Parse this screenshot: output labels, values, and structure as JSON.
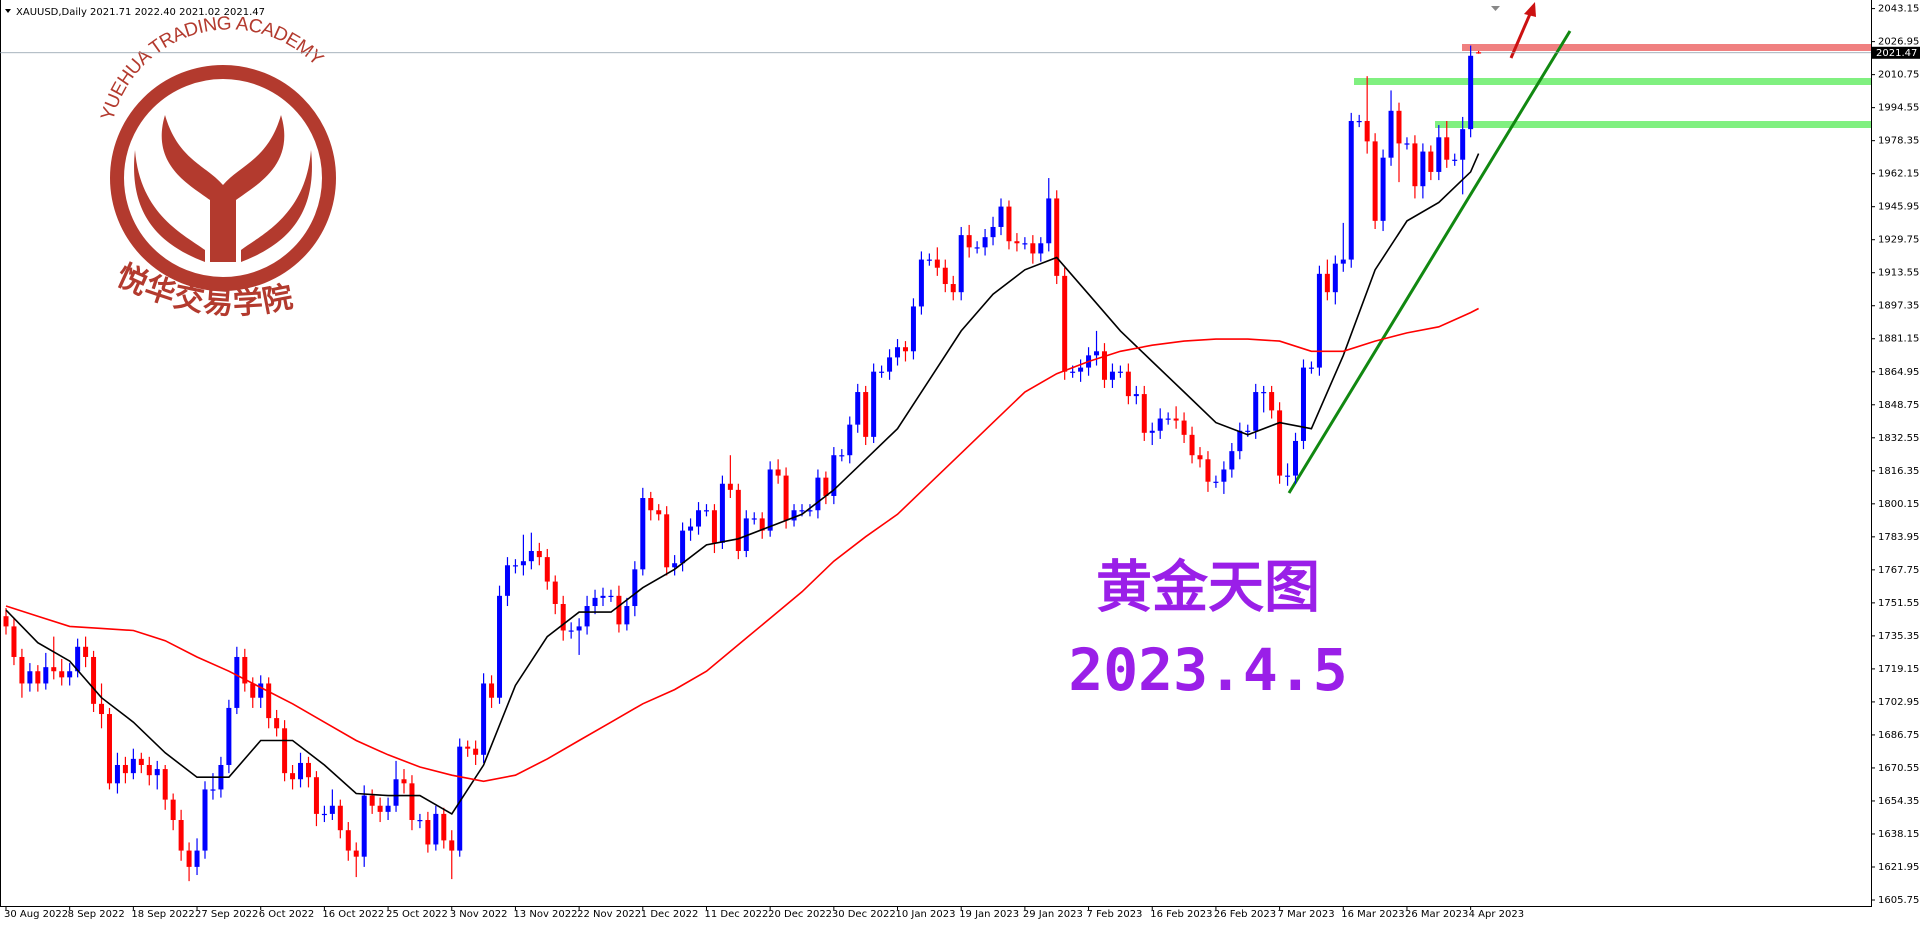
{
  "chart_data": {
    "type": "candlestick",
    "info": "XAUUSD,Daily  2021.71 2022.40 2021.02 2021.47",
    "price_label": "2021.47",
    "watermark": {
      "academy": "YUEHUA TRADING ACADEMY",
      "chinese": "悦华交易学院"
    },
    "annotations": [
      "黄金天图",
      "2023.4.5"
    ],
    "up_color": "#0000ff",
    "down_color": "#ff0000",
    "ylim": [
      1605.75,
      2043.15
    ],
    "yticks": [
      2043.15,
      2026.95,
      2010.75,
      1994.55,
      1978.35,
      1962.15,
      1945.95,
      1929.75,
      1913.55,
      1897.35,
      1881.15,
      1864.95,
      1848.75,
      1832.55,
      1816.35,
      1800.15,
      1783.95,
      1767.75,
      1751.55,
      1735.35,
      1719.15,
      1702.95,
      1686.75,
      1670.55,
      1654.35,
      1638.15,
      1621.95,
      1605.75
    ],
    "categories": [
      "30 Aug 2022",
      null,
      null,
      null,
      null,
      null,
      null,
      null,
      "8 Sep 2022",
      null,
      null,
      null,
      null,
      null,
      null,
      null,
      "18 Sep 2022",
      null,
      null,
      null,
      null,
      null,
      null,
      null,
      "27 Sep 2022",
      null,
      null,
      null,
      null,
      null,
      null,
      null,
      "6 Oct 2022",
      null,
      null,
      null,
      null,
      null,
      null,
      null,
      "16 Oct 2022",
      null,
      null,
      null,
      null,
      null,
      null,
      null,
      "25 Oct 2022",
      null,
      null,
      null,
      null,
      null,
      null,
      null,
      "3 Nov 2022",
      null,
      null,
      null,
      null,
      null,
      null,
      null,
      "13 Nov 2022",
      null,
      null,
      null,
      null,
      null,
      null,
      null,
      "22 Nov 2022",
      null,
      null,
      null,
      null,
      null,
      null,
      null,
      "1 Dec 2022",
      null,
      null,
      null,
      null,
      null,
      null,
      null,
      "11 Dec 2022",
      null,
      null,
      null,
      null,
      null,
      null,
      null,
      "20 Dec 2022",
      null,
      null,
      null,
      null,
      null,
      null,
      null,
      "30 Dec 2022",
      null,
      null,
      null,
      null,
      null,
      null,
      null,
      "10 Jan 2023",
      null,
      null,
      null,
      null,
      null,
      null,
      null,
      "19 Jan 2023",
      null,
      null,
      null,
      null,
      null,
      null,
      null,
      "29 Jan 2023",
      null,
      null,
      null,
      null,
      null,
      null,
      null,
      "7 Feb 2023",
      null,
      null,
      null,
      null,
      null,
      null,
      null,
      "16 Feb 2023",
      null,
      null,
      null,
      null,
      null,
      null,
      null,
      "26 Feb 2023",
      null,
      null,
      null,
      null,
      null,
      null,
      null,
      "7 Mar 2023",
      null,
      null,
      null,
      null,
      null,
      null,
      null,
      "16 Mar 2023",
      null,
      null,
      null,
      null,
      null,
      null,
      null,
      "26 Mar 2023",
      null,
      null,
      null,
      null,
      null,
      null,
      null,
      "4 Apr 2023",
      null
    ],
    "ohlc": [
      [
        1745,
        1749,
        1736,
        1740
      ],
      [
        1740,
        1744,
        1721,
        1725
      ],
      [
        1725,
        1729,
        1705,
        1712
      ],
      [
        1712,
        1722,
        1708,
        1718
      ],
      [
        1718,
        1721,
        1708,
        1712
      ],
      [
        1712,
        1727,
        1709,
        1720
      ],
      [
        1720,
        1735,
        1714,
        1718
      ],
      [
        1718,
        1724,
        1711,
        1715
      ],
      [
        1715,
        1722,
        1711,
        1718
      ],
      [
        1718,
        1734,
        1715,
        1730
      ],
      [
        1730,
        1735,
        1720,
        1725
      ],
      [
        1725,
        1728,
        1698,
        1702
      ],
      [
        1702,
        1712,
        1690,
        1697
      ],
      [
        1697,
        1700,
        1660,
        1663
      ],
      [
        1663,
        1678,
        1658,
        1672
      ],
      [
        1672,
        1676,
        1663,
        1668
      ],
      [
        1668,
        1680,
        1665,
        1675
      ],
      [
        1675,
        1678,
        1668,
        1672
      ],
      [
        1672,
        1676,
        1662,
        1667
      ],
      [
        1667,
        1674,
        1660,
        1670
      ],
      [
        1670,
        1672,
        1650,
        1655
      ],
      [
        1655,
        1658,
        1640,
        1645
      ],
      [
        1645,
        1650,
        1625,
        1630
      ],
      [
        1630,
        1634,
        1615,
        1622
      ],
      [
        1622,
        1636,
        1618,
        1630
      ],
      [
        1630,
        1664,
        1626,
        1660
      ],
      [
        1660,
        1668,
        1655,
        1660
      ],
      [
        1660,
        1676,
        1656,
        1672
      ],
      [
        1672,
        1704,
        1668,
        1700
      ],
      [
        1700,
        1730,
        1697,
        1725
      ],
      [
        1725,
        1729,
        1708,
        1712
      ],
      [
        1712,
        1715,
        1700,
        1705
      ],
      [
        1705,
        1716,
        1700,
        1712
      ],
      [
        1712,
        1715,
        1690,
        1695
      ],
      [
        1695,
        1699,
        1686,
        1690
      ],
      [
        1690,
        1694,
        1664,
        1668
      ],
      [
        1668,
        1672,
        1660,
        1665
      ],
      [
        1665,
        1678,
        1661,
        1673
      ],
      [
        1673,
        1676,
        1661,
        1666
      ],
      [
        1666,
        1669,
        1642,
        1648
      ],
      [
        1648,
        1652,
        1644,
        1648
      ],
      [
        1648,
        1660,
        1645,
        1652
      ],
      [
        1652,
        1655,
        1636,
        1640
      ],
      [
        1640,
        1644,
        1625,
        1630
      ],
      [
        1630,
        1634,
        1617,
        1627
      ],
      [
        1627,
        1662,
        1622,
        1657
      ],
      [
        1657,
        1660,
        1648,
        1652
      ],
      [
        1652,
        1656,
        1644,
        1649
      ],
      [
        1649,
        1656,
        1645,
        1652
      ],
      [
        1652,
        1674,
        1649,
        1665
      ],
      [
        1665,
        1670,
        1658,
        1663
      ],
      [
        1663,
        1667,
        1640,
        1645
      ],
      [
        1645,
        1648,
        1641,
        1645
      ],
      [
        1645,
        1649,
        1629,
        1633
      ],
      [
        1633,
        1652,
        1630,
        1648
      ],
      [
        1648,
        1651,
        1631,
        1635
      ],
      [
        1635,
        1640,
        1616,
        1630
      ],
      [
        1630,
        1685,
        1627,
        1681
      ],
      [
        1681,
        1684,
        1676,
        1680
      ],
      [
        1680,
        1684,
        1672,
        1677
      ],
      [
        1677,
        1717,
        1673,
        1712
      ],
      [
        1712,
        1716,
        1700,
        1705
      ],
      [
        1705,
        1760,
        1702,
        1755
      ],
      [
        1755,
        1774,
        1750,
        1770
      ],
      [
        1770,
        1773,
        1766,
        1770
      ],
      [
        1770,
        1785,
        1765,
        1772
      ],
      [
        1772,
        1786,
        1768,
        1777
      ],
      [
        1777,
        1781,
        1770,
        1774
      ],
      [
        1774,
        1778,
        1758,
        1762
      ],
      [
        1762,
        1765,
        1746,
        1751
      ],
      [
        1751,
        1755,
        1733,
        1738
      ],
      [
        1738,
        1742,
        1734,
        1738
      ],
      [
        1738,
        1744,
        1726,
        1740
      ],
      [
        1740,
        1755,
        1736,
        1750
      ],
      [
        1750,
        1758,
        1746,
        1754
      ],
      [
        1754,
        1759,
        1750,
        1755
      ],
      [
        1755,
        1758,
        1752,
        1755
      ],
      [
        1755,
        1760,
        1737,
        1741
      ],
      [
        1741,
        1754,
        1738,
        1750
      ],
      [
        1750,
        1772,
        1745,
        1768
      ],
      [
        1768,
        1808,
        1765,
        1803
      ],
      [
        1803,
        1806,
        1792,
        1797
      ],
      [
        1797,
        1800,
        1792,
        1795
      ],
      [
        1795,
        1799,
        1765,
        1769
      ],
      [
        1769,
        1775,
        1765,
        1771
      ],
      [
        1771,
        1791,
        1767,
        1787
      ],
      [
        1787,
        1793,
        1782,
        1789
      ],
      [
        1789,
        1801,
        1785,
        1797
      ],
      [
        1797,
        1800,
        1794,
        1797
      ],
      [
        1797,
        1800,
        1776,
        1781
      ],
      [
        1781,
        1814,
        1778,
        1810
      ],
      [
        1810,
        1824,
        1803,
        1807
      ],
      [
        1807,
        1810,
        1773,
        1777
      ],
      [
        1777,
        1797,
        1774,
        1793
      ],
      [
        1793,
        1796,
        1790,
        1793
      ],
      [
        1793,
        1796,
        1783,
        1787
      ],
      [
        1787,
        1821,
        1784,
        1817
      ],
      [
        1817,
        1822,
        1810,
        1814
      ],
      [
        1814,
        1818,
        1788,
        1792
      ],
      [
        1792,
        1800,
        1789,
        1797
      ],
      [
        1797,
        1800,
        1794,
        1797
      ],
      [
        1797,
        1800,
        1794,
        1797
      ],
      [
        1797,
        1817,
        1793,
        1813
      ],
      [
        1813,
        1816,
        1800,
        1804
      ],
      [
        1804,
        1828,
        1800,
        1824
      ],
      [
        1824,
        1827,
        1821,
        1824
      ],
      [
        1824,
        1843,
        1820,
        1839
      ],
      [
        1839,
        1859,
        1835,
        1855
      ],
      [
        1855,
        1858,
        1829,
        1833
      ],
      [
        1833,
        1869,
        1830,
        1865
      ],
      [
        1865,
        1868,
        1862,
        1865
      ],
      [
        1865,
        1876,
        1861,
        1872
      ],
      [
        1872,
        1881,
        1868,
        1877
      ],
      [
        1877,
        1880,
        1870,
        1875
      ],
      [
        1875,
        1901,
        1871,
        1897
      ],
      [
        1897,
        1924,
        1893,
        1920
      ],
      [
        1920,
        1923,
        1917,
        1920
      ],
      [
        1920,
        1926,
        1912,
        1916
      ],
      [
        1916,
        1920,
        1904,
        1908
      ],
      [
        1908,
        1912,
        1900,
        1904
      ],
      [
        1904,
        1936,
        1900,
        1932
      ],
      [
        1932,
        1937,
        1921,
        1926
      ],
      [
        1926,
        1929,
        1923,
        1926
      ],
      [
        1926,
        1935,
        1922,
        1931
      ],
      [
        1931,
        1941,
        1927,
        1936
      ],
      [
        1936,
        1950,
        1932,
        1946
      ],
      [
        1946,
        1949,
        1925,
        1929
      ],
      [
        1929,
        1933,
        1924,
        1928
      ],
      [
        1928,
        1931,
        1925,
        1928
      ],
      [
        1928,
        1932,
        1918,
        1923
      ],
      [
        1923,
        1931,
        1919,
        1928
      ],
      [
        1928,
        1960,
        1924,
        1950
      ],
      [
        1950,
        1954,
        1908,
        1912
      ],
      [
        1912,
        1916,
        1861,
        1865
      ],
      [
        1865,
        1868,
        1862,
        1865
      ],
      [
        1865,
        1871,
        1860,
        1867
      ],
      [
        1867,
        1877,
        1863,
        1873
      ],
      [
        1873,
        1885,
        1868,
        1875
      ],
      [
        1875,
        1879,
        1857,
        1861
      ],
      [
        1861,
        1869,
        1857,
        1865
      ],
      [
        1865,
        1868,
        1862,
        1865
      ],
      [
        1865,
        1869,
        1849,
        1853
      ],
      [
        1853,
        1858,
        1849,
        1854
      ],
      [
        1854,
        1858,
        1831,
        1835
      ],
      [
        1835,
        1840,
        1829,
        1836
      ],
      [
        1836,
        1847,
        1832,
        1842
      ],
      [
        1842,
        1845,
        1839,
        1842
      ],
      [
        1842,
        1848,
        1837,
        1841
      ],
      [
        1841,
        1845,
        1830,
        1834
      ],
      [
        1834,
        1838,
        1820,
        1824
      ],
      [
        1824,
        1828,
        1818,
        1822
      ],
      [
        1822,
        1826,
        1806,
        1811
      ],
      [
        1811,
        1814,
        1808,
        1811
      ],
      [
        1811,
        1821,
        1805,
        1817
      ],
      [
        1817,
        1830,
        1813,
        1826
      ],
      [
        1826,
        1840,
        1822,
        1836
      ],
      [
        1836,
        1839,
        1833,
        1836
      ],
      [
        1836,
        1859,
        1832,
        1855
      ],
      [
        1855,
        1858,
        1845,
        1855
      ],
      [
        1855,
        1858,
        1842,
        1846
      ],
      [
        1846,
        1850,
        1810,
        1814
      ],
      [
        1814,
        1820,
        1809,
        1814
      ],
      [
        1814,
        1835,
        1810,
        1831
      ],
      [
        1831,
        1871,
        1827,
        1867
      ],
      [
        1867,
        1870,
        1864,
        1867
      ],
      [
        1867,
        1917,
        1863,
        1913
      ],
      [
        1913,
        1920,
        1900,
        1904
      ],
      [
        1904,
        1922,
        1898,
        1918
      ],
      [
        1918,
        1938,
        1914,
        1920
      ],
      [
        1920,
        1992,
        1916,
        1988
      ],
      [
        1988,
        1991,
        1985,
        1988
      ],
      [
        1988,
        2010,
        1972,
        1978
      ],
      [
        1978,
        1982,
        1935,
        1939
      ],
      [
        1939,
        1974,
        1934,
        1970
      ],
      [
        1970,
        2003,
        1966,
        1993
      ],
      [
        1993,
        1997,
        1958,
        1977
      ],
      [
        1977,
        1980,
        1974,
        1977
      ],
      [
        1977,
        1981,
        1950,
        1956
      ],
      [
        1956,
        1977,
        1950,
        1973
      ],
      [
        1973,
        1976,
        1959,
        1963
      ],
      [
        1963,
        1986,
        1959,
        1980
      ],
      [
        1980,
        1988,
        1965,
        1969
      ],
      [
        1969,
        1972,
        1966,
        1969
      ],
      [
        1969,
        1990,
        1952,
        1984
      ],
      [
        1984,
        2025,
        1980,
        2020
      ],
      [
        2021.71,
        2022.4,
        2021.02,
        2021.47
      ]
    ],
    "overlays": [
      {
        "color": "#000000",
        "x": [
          0,
          4,
          8,
          12,
          16,
          20,
          24,
          28,
          32,
          36,
          40,
          44,
          48,
          52,
          56,
          60,
          64,
          68,
          72,
          76,
          80,
          84,
          88,
          92,
          96,
          100,
          104,
          108,
          112,
          116,
          120,
          124,
          128,
          132,
          136,
          140,
          144,
          148,
          152,
          156,
          160,
          164,
          168,
          172,
          176,
          180,
          184,
          185
        ],
        "values": [
          1748,
          1732,
          1723,
          1705,
          1693,
          1678,
          1666,
          1666,
          1684,
          1684,
          1672,
          1658,
          1657,
          1657,
          1648,
          1672,
          1711,
          1735,
          1747,
          1747,
          1759,
          1768,
          1780,
          1783,
          1789,
          1795,
          1807,
          1822,
          1837,
          1861,
          1885,
          1903,
          1915,
          1921,
          1903,
          1885,
          1870,
          1855,
          1840,
          1834,
          1840,
          1837,
          1873,
          1915,
          1939,
          1948,
          1963,
          1972
        ]
      },
      {
        "color": "#ff0000",
        "x": [
          0,
          4,
          8,
          12,
          16,
          20,
          24,
          28,
          32,
          36,
          40,
          44,
          48,
          52,
          56,
          60,
          64,
          68,
          72,
          76,
          80,
          84,
          88,
          92,
          96,
          100,
          104,
          108,
          112,
          116,
          120,
          124,
          128,
          132,
          136,
          140,
          144,
          148,
          152,
          156,
          160,
          164,
          168,
          172,
          176,
          180,
          184,
          185
        ],
        "values": [
          1750,
          1745,
          1740,
          1739,
          1738,
          1733,
          1725,
          1718,
          1710,
          1702,
          1693,
          1684,
          1677,
          1671,
          1667,
          1664,
          1667,
          1675,
          1684,
          1693,
          1702,
          1709,
          1718,
          1731,
          1744,
          1757,
          1772,
          1784,
          1795,
          1810,
          1825,
          1840,
          1855,
          1864,
          1870,
          1875,
          1878,
          1880,
          1881,
          1881,
          1880,
          1875,
          1875,
          1880,
          1884,
          1887,
          1894,
          1896
        ]
      }
    ]
  }
}
